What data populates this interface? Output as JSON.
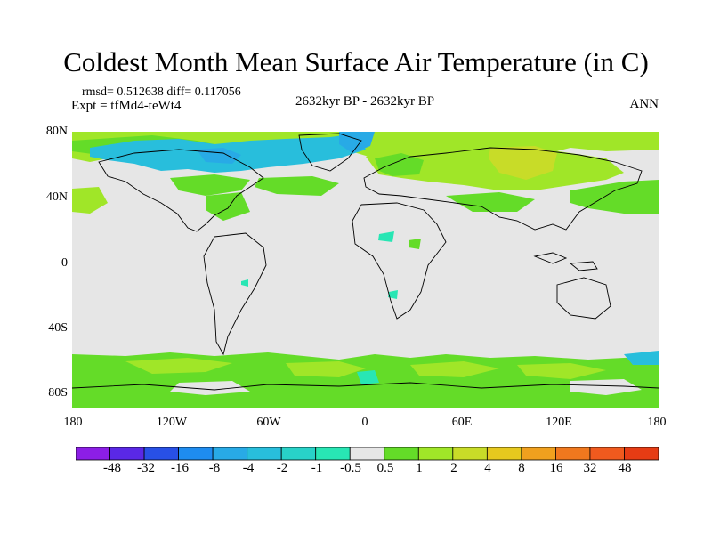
{
  "title": "Coldest Month Mean Surface Air Temperature (in C)",
  "stats": "rmsd= 0.512638  diff= 0.117056",
  "expt": "Expt = tfMd4-teWt4",
  "period": "2632kyr BP - 2632kyr BP",
  "season": "ANN",
  "lat_labels": [
    "80N",
    "40N",
    "0",
    "40S",
    "80S"
  ],
  "lon_labels": [
    "180",
    "120W",
    "60W",
    "0",
    "60E",
    "120E",
    "180"
  ],
  "legend": {
    "colors": [
      "#8c1ee6",
      "#5a28e6",
      "#2850e6",
      "#1e8cf0",
      "#28aae6",
      "#28bedc",
      "#28d2c8",
      "#28e6b4",
      "#e6e6e6",
      "#64dc28",
      "#a0e628",
      "#c8dc28",
      "#e6c81e",
      "#f0a01e",
      "#f0781e",
      "#f05a1e",
      "#e63c14"
    ],
    "labels": [
      "-48",
      "-32",
      "-16",
      "-8",
      "-4",
      "-2",
      "-1",
      "-0.5",
      "0.5",
      "1",
      "2",
      "4",
      "8",
      "16",
      "32",
      "48"
    ]
  },
  "map_colors": {
    "background": "#e6e6e6",
    "green": "#64dc28",
    "yellowgreen": "#a0e628",
    "olive": "#c8dc28",
    "cyan": "#28bedc",
    "teal": "#28e6b4",
    "blue": "#28aae6"
  }
}
